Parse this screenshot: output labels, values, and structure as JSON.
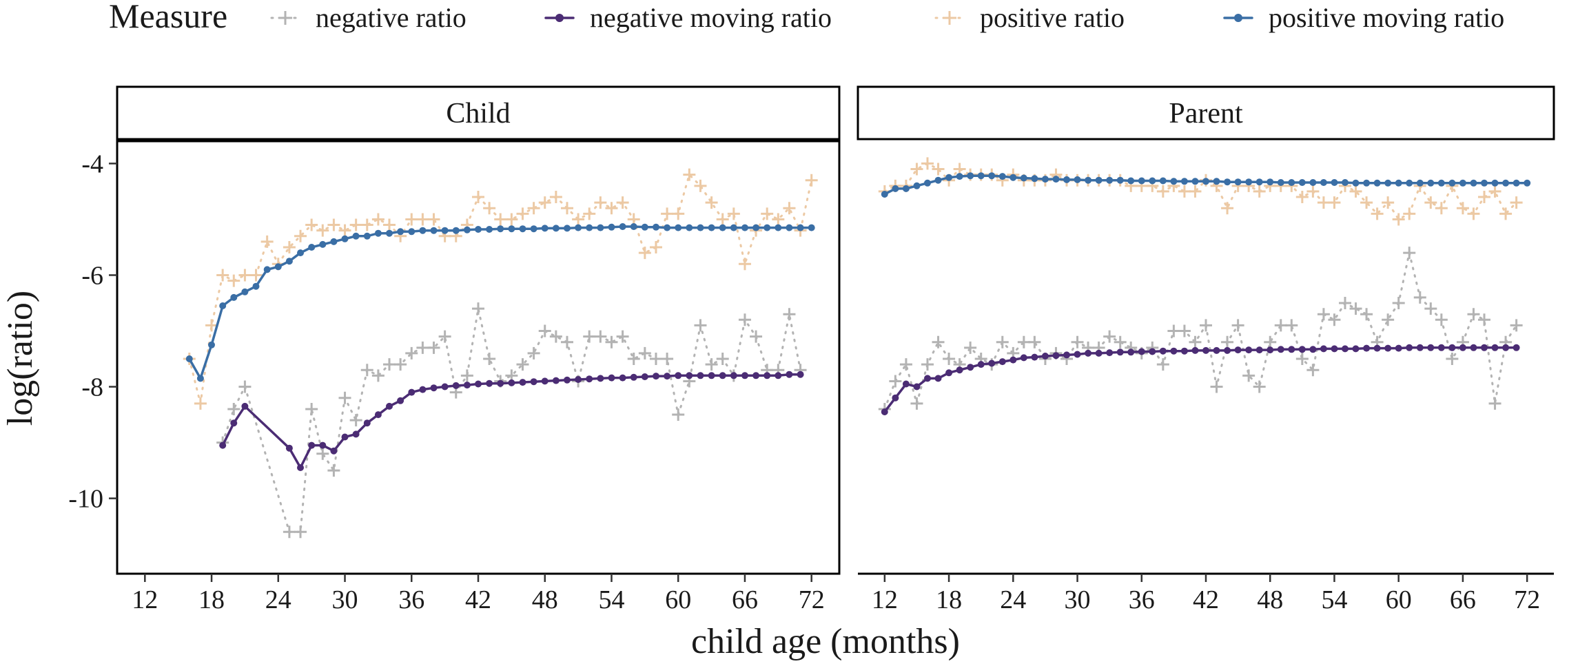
{
  "chart_data": {
    "type": "line",
    "xlabel": "child age (months)",
    "ylabel": "log(ratio)",
    "legend": {
      "title": "Measure",
      "position": "top",
      "entries": [
        {
          "key": "neg_ratio",
          "label": "negative ratio"
        },
        {
          "key": "neg_moving",
          "label": "negative moving ratio"
        },
        {
          "key": "pos_ratio",
          "label": "positive ratio"
        },
        {
          "key": "pos_moving",
          "label": "positive moving ratio"
        }
      ]
    },
    "colors": {
      "neg_ratio": "#b3b3b3",
      "neg_moving": "#4b2c74",
      "pos_ratio": "#ecc9a4",
      "pos_moving": "#3a6ea5"
    },
    "x_ticks": [
      12,
      18,
      24,
      30,
      36,
      42,
      48,
      54,
      60,
      66,
      72
    ],
    "y_ticks": [
      -4,
      -6,
      -8,
      -10
    ],
    "xlim": [
      9.5,
      74.5
    ],
    "ylim": [
      -11.35,
      -3.6
    ],
    "grid": false,
    "panels": [
      {
        "name": "Child",
        "series": {
          "pos_ratio": {
            "x": [
              16,
              17,
              18,
              19,
              20,
              21,
              22,
              23,
              24,
              25,
              26,
              27,
              28,
              29,
              30,
              31,
              32,
              33,
              34,
              35,
              36,
              37,
              38,
              39,
              40,
              41,
              42,
              43,
              44,
              45,
              46,
              47,
              48,
              49,
              50,
              51,
              52,
              53,
              54,
              55,
              56,
              57,
              58,
              59,
              60,
              61,
              62,
              63,
              64,
              65,
              66,
              67,
              68,
              69,
              70,
              71,
              72
            ],
            "y": [
              -7.5,
              -8.3,
              -6.9,
              -6.0,
              -6.1,
              -6.0,
              -6.0,
              -5.4,
              -5.8,
              -5.5,
              -5.3,
              -5.1,
              -5.2,
              -5.1,
              -5.2,
              -5.1,
              -5.1,
              -5.0,
              -5.1,
              -5.3,
              -5.0,
              -5.0,
              -5.0,
              -5.3,
              -5.3,
              -5.1,
              -4.6,
              -4.8,
              -5.0,
              -5.0,
              -4.9,
              -4.8,
              -4.7,
              -4.6,
              -4.8,
              -5.0,
              -4.9,
              -4.7,
              -4.8,
              -4.7,
              -5.0,
              -5.6,
              -5.5,
              -4.9,
              -4.9,
              -4.2,
              -4.4,
              -4.7,
              -5.0,
              -4.9,
              -5.8,
              -5.2,
              -4.9,
              -5.0,
              -4.8,
              -5.2,
              -4.3
            ]
          },
          "pos_moving": {
            "x": [
              16,
              17,
              18,
              19,
              20,
              21,
              22,
              23,
              24,
              25,
              26,
              27,
              28,
              29,
              30,
              31,
              32,
              33,
              34,
              35,
              36,
              37,
              38,
              39,
              40,
              41,
              42,
              43,
              44,
              45,
              46,
              47,
              48,
              49,
              50,
              51,
              52,
              53,
              54,
              55,
              56,
              57,
              58,
              59,
              60,
              61,
              62,
              63,
              64,
              65,
              66,
              67,
              68,
              69,
              70,
              71,
              72
            ],
            "y": [
              -7.5,
              -7.85,
              -7.25,
              -6.55,
              -6.4,
              -6.3,
              -6.2,
              -5.9,
              -5.85,
              -5.75,
              -5.6,
              -5.5,
              -5.45,
              -5.4,
              -5.35,
              -5.3,
              -5.3,
              -5.25,
              -5.25,
              -5.22,
              -5.22,
              -5.2,
              -5.2,
              -5.2,
              -5.2,
              -5.19,
              -5.18,
              -5.18,
              -5.17,
              -5.17,
              -5.17,
              -5.17,
              -5.16,
              -5.16,
              -5.16,
              -5.15,
              -5.15,
              -5.15,
              -5.14,
              -5.13,
              -5.13,
              -5.14,
              -5.14,
              -5.15,
              -5.15,
              -5.15,
              -5.15,
              -5.15,
              -5.15,
              -5.15,
              -5.15,
              -5.15,
              -5.15,
              -5.15,
              -5.15,
              -5.15,
              -5.15
            ]
          },
          "neg_ratio": {
            "x": [
              19,
              20,
              21,
              25,
              26,
              27,
              28,
              29,
              30,
              31,
              32,
              33,
              34,
              35,
              36,
              37,
              38,
              39,
              40,
              41,
              42,
              43,
              44,
              45,
              46,
              47,
              48,
              49,
              50,
              51,
              52,
              53,
              54,
              55,
              56,
              57,
              58,
              59,
              60,
              61,
              62,
              63,
              64,
              65,
              66,
              67,
              68,
              69,
              70,
              71
            ],
            "y": [
              -9.0,
              -8.4,
              -8.0,
              -10.6,
              -10.6,
              -8.4,
              -9.2,
              -9.5,
              -8.2,
              -8.6,
              -7.7,
              -7.8,
              -7.6,
              -7.6,
              -7.4,
              -7.3,
              -7.3,
              -7.1,
              -8.1,
              -7.8,
              -6.6,
              -7.5,
              -7.9,
              -7.8,
              -7.6,
              -7.4,
              -7.0,
              -7.1,
              -7.2,
              -7.9,
              -7.1,
              -7.1,
              -7.2,
              -7.1,
              -7.5,
              -7.4,
              -7.5,
              -7.5,
              -8.5,
              -7.9,
              -6.9,
              -7.6,
              -7.5,
              -7.8,
              -6.8,
              -7.1,
              -7.7,
              -7.7,
              -6.7,
              -7.7
            ]
          },
          "neg_moving": {
            "x": [
              19,
              20,
              21,
              25,
              26,
              27,
              28,
              29,
              30,
              31,
              32,
              33,
              34,
              35,
              36,
              37,
              38,
              39,
              40,
              41,
              42,
              43,
              44,
              45,
              46,
              47,
              48,
              49,
              50,
              51,
              52,
              53,
              54,
              55,
              56,
              57,
              58,
              59,
              60,
              61,
              62,
              63,
              64,
              65,
              66,
              67,
              68,
              69,
              70,
              71
            ],
            "y": [
              -9.05,
              -8.65,
              -8.35,
              -9.1,
              -9.45,
              -9.05,
              -9.05,
              -9.15,
              -8.9,
              -8.85,
              -8.65,
              -8.5,
              -8.35,
              -8.25,
              -8.1,
              -8.05,
              -8.02,
              -8.0,
              -7.98,
              -7.97,
              -7.95,
              -7.94,
              -7.94,
              -7.93,
              -7.92,
              -7.91,
              -7.9,
              -7.89,
              -7.88,
              -7.87,
              -7.86,
              -7.85,
              -7.84,
              -7.84,
              -7.83,
              -7.82,
              -7.81,
              -7.81,
              -7.8,
              -7.8,
              -7.8,
              -7.8,
              -7.8,
              -7.8,
              -7.8,
              -7.8,
              -7.8,
              -7.8,
              -7.78,
              -7.78
            ]
          }
        }
      },
      {
        "name": "Parent",
        "series": {
          "pos_ratio": {
            "x": [
              12,
              13,
              14,
              15,
              16,
              17,
              18,
              19,
              20,
              21,
              22,
              23,
              24,
              25,
              26,
              27,
              28,
              29,
              30,
              31,
              32,
              33,
              34,
              35,
              36,
              37,
              38,
              39,
              40,
              41,
              42,
              43,
              44,
              45,
              46,
              47,
              48,
              49,
              50,
              51,
              52,
              53,
              54,
              55,
              56,
              57,
              58,
              59,
              60,
              61,
              62,
              63,
              64,
              65,
              66,
              67,
              68,
              69,
              70,
              71
            ],
            "y": [
              -4.5,
              -4.4,
              -4.4,
              -4.1,
              -4.0,
              -4.1,
              -4.3,
              -4.1,
              -4.2,
              -4.2,
              -4.2,
              -4.3,
              -4.2,
              -4.3,
              -4.3,
              -4.3,
              -4.2,
              -4.3,
              -4.3,
              -4.3,
              -4.3,
              -4.3,
              -4.3,
              -4.4,
              -4.4,
              -4.4,
              -4.5,
              -4.4,
              -4.5,
              -4.5,
              -4.3,
              -4.4,
              -4.8,
              -4.4,
              -4.4,
              -4.5,
              -4.4,
              -4.4,
              -4.4,
              -4.6,
              -4.5,
              -4.7,
              -4.7,
              -4.4,
              -4.5,
              -4.7,
              -4.9,
              -4.7,
              -5.0,
              -4.9,
              -4.4,
              -4.7,
              -4.8,
              -4.4,
              -4.8,
              -4.9,
              -4.6,
              -4.5,
              -4.9,
              -4.7
            ]
          },
          "pos_moving": {
            "x": [
              12,
              13,
              14,
              15,
              16,
              17,
              18,
              19,
              20,
              21,
              22,
              23,
              24,
              25,
              26,
              27,
              28,
              29,
              30,
              31,
              32,
              33,
              34,
              35,
              36,
              37,
              38,
              39,
              40,
              41,
              42,
              43,
              44,
              45,
              46,
              47,
              48,
              49,
              50,
              51,
              52,
              53,
              54,
              55,
              56,
              57,
              58,
              59,
              60,
              61,
              62,
              63,
              64,
              65,
              66,
              67,
              68,
              69,
              70,
              71,
              72
            ],
            "y": [
              -4.55,
              -4.45,
              -4.45,
              -4.4,
              -4.35,
              -4.3,
              -4.25,
              -4.23,
              -4.22,
              -4.22,
              -4.22,
              -4.23,
              -4.25,
              -4.26,
              -4.27,
              -4.28,
              -4.28,
              -4.29,
              -4.29,
              -4.3,
              -4.3,
              -4.3,
              -4.3,
              -4.31,
              -4.31,
              -4.31,
              -4.31,
              -4.32,
              -4.32,
              -4.32,
              -4.32,
              -4.32,
              -4.33,
              -4.33,
              -4.33,
              -4.33,
              -4.33,
              -4.34,
              -4.34,
              -4.34,
              -4.34,
              -4.34,
              -4.34,
              -4.34,
              -4.35,
              -4.35,
              -4.35,
              -4.35,
              -4.35,
              -4.35,
              -4.35,
              -4.35,
              -4.35,
              -4.35,
              -4.35,
              -4.35,
              -4.35,
              -4.35,
              -4.35,
              -4.35,
              -4.35
            ]
          },
          "neg_ratio": {
            "x": [
              12,
              13,
              14,
              15,
              16,
              17,
              18,
              19,
              20,
              21,
              22,
              23,
              24,
              25,
              26,
              27,
              28,
              29,
              30,
              31,
              32,
              33,
              34,
              35,
              36,
              37,
              38,
              39,
              40,
              41,
              42,
              43,
              44,
              45,
              46,
              47,
              48,
              49,
              50,
              51,
              52,
              53,
              54,
              55,
              56,
              57,
              58,
              59,
              60,
              61,
              62,
              63,
              64,
              65,
              66,
              67,
              68,
              69,
              70,
              71
            ],
            "y": [
              -8.4,
              -7.9,
              -7.6,
              -8.3,
              -7.6,
              -7.2,
              -7.5,
              -7.6,
              -7.3,
              -7.5,
              -7.6,
              -7.2,
              -7.4,
              -7.2,
              -7.2,
              -7.5,
              -7.4,
              -7.5,
              -7.2,
              -7.3,
              -7.3,
              -7.1,
              -7.2,
              -7.3,
              -7.4,
              -7.3,
              -7.6,
              -7.0,
              -7.0,
              -7.2,
              -6.9,
              -8.0,
              -7.2,
              -6.9,
              -7.8,
              -8.0,
              -7.2,
              -6.9,
              -6.9,
              -7.5,
              -7.7,
              -6.7,
              -6.8,
              -6.5,
              -6.6,
              -6.7,
              -7.2,
              -6.8,
              -6.5,
              -5.6,
              -6.4,
              -6.6,
              -6.8,
              -7.5,
              -7.2,
              -6.7,
              -6.8,
              -8.3,
              -7.2,
              -6.9
            ]
          },
          "neg_moving": {
            "x": [
              12,
              13,
              14,
              15,
              16,
              17,
              18,
              19,
              20,
              21,
              22,
              23,
              24,
              25,
              26,
              27,
              28,
              29,
              30,
              31,
              32,
              33,
              34,
              35,
              36,
              37,
              38,
              39,
              40,
              41,
              42,
              43,
              44,
              45,
              46,
              47,
              48,
              49,
              50,
              51,
              52,
              53,
              54,
              55,
              56,
              57,
              58,
              59,
              60,
              61,
              62,
              63,
              64,
              65,
              66,
              67,
              68,
              69,
              70,
              71
            ],
            "y": [
              -8.45,
              -8.2,
              -7.95,
              -8.0,
              -7.85,
              -7.85,
              -7.75,
              -7.7,
              -7.65,
              -7.6,
              -7.58,
              -7.55,
              -7.52,
              -7.48,
              -7.47,
              -7.45,
              -7.44,
              -7.43,
              -7.42,
              -7.4,
              -7.4,
              -7.39,
              -7.38,
              -7.38,
              -7.37,
              -7.37,
              -7.36,
              -7.36,
              -7.36,
              -7.35,
              -7.35,
              -7.35,
              -7.35,
              -7.34,
              -7.34,
              -7.34,
              -7.34,
              -7.33,
              -7.33,
              -7.33,
              -7.33,
              -7.32,
              -7.32,
              -7.32,
              -7.32,
              -7.31,
              -7.31,
              -7.31,
              -7.31,
              -7.3,
              -7.3,
              -7.3,
              -7.3,
              -7.3,
              -7.3,
              -7.3,
              -7.3,
              -7.3,
              -7.3,
              -7.3
            ]
          }
        }
      }
    ]
  }
}
